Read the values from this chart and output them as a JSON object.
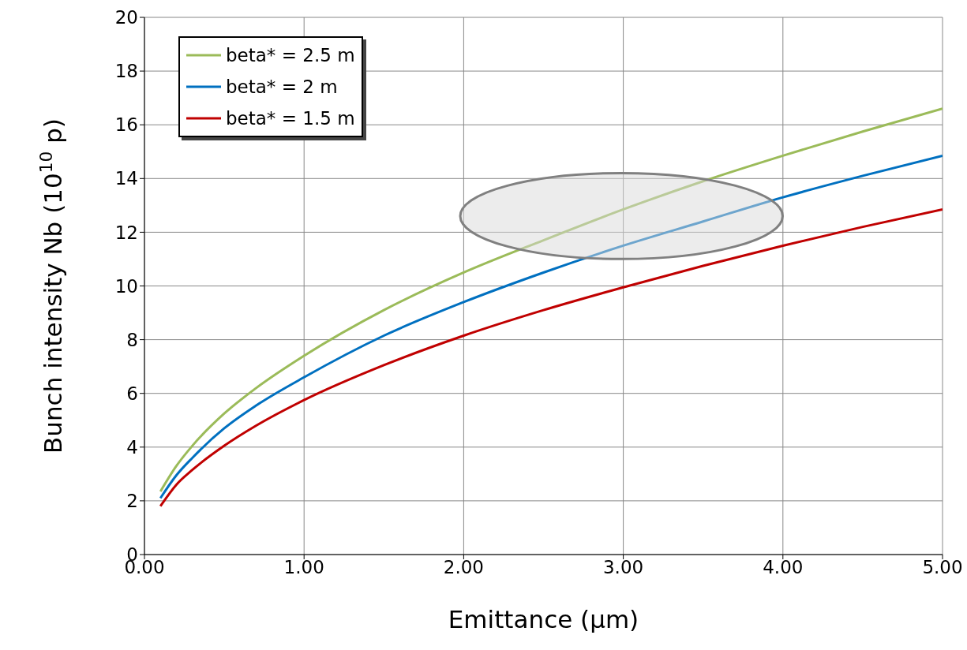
{
  "chart_data": {
    "type": "line",
    "xlabel": "Emittance (μm)",
    "ylabel": "Bunch intensity Nb (10$^{10}$ p)",
    "x": [
      0.1,
      0.2,
      0.3,
      0.5,
      0.7,
      1,
      1.5,
      2,
      2.5,
      3,
      3.5,
      4,
      4.5,
      5
    ],
    "series": [
      {
        "name": "beta* = 2.5 m",
        "color": "#9bbb59",
        "values": [
          2.35,
          3.3,
          4.05,
          5.25,
          6.2,
          7.4,
          9.1,
          10.5,
          11.7,
          12.85,
          13.9,
          14.85,
          15.75,
          16.6
        ]
      },
      {
        "name": "beta* = 2 m",
        "color": "#0070c0",
        "values": [
          2.1,
          2.95,
          3.6,
          4.7,
          5.55,
          6.6,
          8.15,
          9.4,
          10.5,
          11.5,
          12.4,
          13.3,
          14.1,
          14.85
        ]
      },
      {
        "name": "beta* = 1.5 m",
        "color": "#c00000",
        "values": [
          1.8,
          2.6,
          3.15,
          4.05,
          4.8,
          5.75,
          7.05,
          8.15,
          9.1,
          9.95,
          10.75,
          11.5,
          12.2,
          12.85
        ]
      }
    ],
    "xlim": [
      0,
      5
    ],
    "xticks": [
      {
        "value": 0,
        "label": "0.00"
      },
      {
        "value": 1,
        "label": "1.00"
      },
      {
        "value": 2,
        "label": "2.00"
      },
      {
        "value": 3,
        "label": "3.00"
      },
      {
        "value": 4,
        "label": "4.00"
      },
      {
        "value": 5,
        "label": "5.00"
      }
    ],
    "ylim": [
      0,
      20
    ],
    "yticks": [
      0,
      2,
      4,
      6,
      8,
      10,
      12,
      14,
      16,
      18,
      20
    ],
    "grid": true,
    "legend": "top left",
    "marker": "none",
    "line_style": "solid"
  }
}
